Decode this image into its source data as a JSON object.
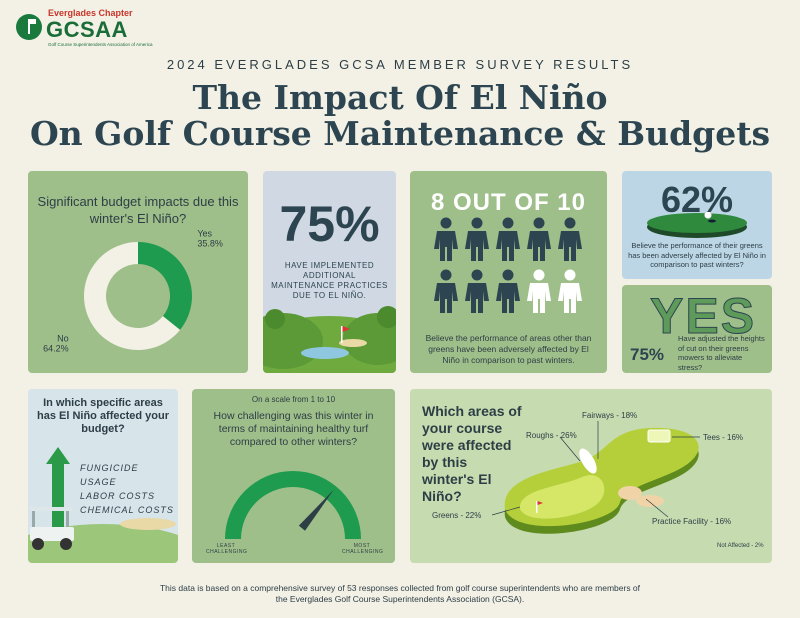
{
  "logo": {
    "chapter": "Everglades Chapter",
    "name": "GCSAA",
    "subtitle": "Golf Course Superintendents Association of America"
  },
  "header": {
    "survey_label": "2024 EVERGLADES GCSA MEMBER SURVEY RESULTS",
    "title_line1": "The Impact Of El Niño",
    "title_line2": "On Golf Course Maintenance & Budgets"
  },
  "budget_panel": {
    "question": "Significant budget impacts due this winter's El Niño?"
  },
  "maintenance_panel": {
    "stat": "75%",
    "text": "HAVE IMPLEMENTED ADDITIONAL MAINTENANCE PRACTICES DUE TO EL NIÑO."
  },
  "areas_panel": {
    "stat": "8 OUT OF 10",
    "text": "Believe the performance of areas other than greens have been adversely affected by El Niño in comparison to past winters."
  },
  "greens_panel": {
    "stat": "62%",
    "text": "Believe the performance of their greens has been adversely affected by El Niño in comparison to past winters?"
  },
  "mowers_panel": {
    "yes": "YES",
    "stat": "75%",
    "text": "Have adjusted the heights of cut on their greens mowers to alleviate stress?"
  },
  "specific_panel": {
    "question": "In which specific areas has El Niño affected your budget?",
    "items": [
      "FUNGICIDE USAGE",
      "LABOR COSTS",
      "CHEMICAL COSTS"
    ]
  },
  "gauge_panel": {
    "scale": "On a scale from 1 to 10",
    "question": "How challenging was this winter in terms of maintaining healthy turf compared to other winters?",
    "least": "LEAST CHALLENGING",
    "most": "MOST CHALLENGING"
  },
  "course_panel": {
    "question": "Which areas of your course were affected by this winter's El Niño?"
  },
  "footer": {
    "line1": "This data is based on a comprehensive survey of 53 responses collected from golf course superintendents who are members of",
    "line2": "the Everglades Golf Course Superintendents Association (GCSA)."
  },
  "colors": {
    "green": "#1e9b4e",
    "cream": "#f3f1e6",
    "navy": "#2d4550",
    "sage": "#9fbf8a"
  },
  "chart_data": [
    {
      "type": "pie",
      "title": "Significant budget impacts due this winter's El Niño?",
      "categories": [
        "Yes",
        "No"
      ],
      "values": [
        35.8,
        64.2
      ],
      "display": [
        "35.8%",
        "64.2%"
      ],
      "colors": [
        "#1e9b4e",
        "#f3f1e6"
      ],
      "donut": true
    },
    {
      "type": "bar",
      "title": "How challenging was this winter in terms of maintaining healthy turf compared to other winters?",
      "scale": [
        1,
        10
      ],
      "labels": [
        "LEAST CHALLENGING",
        "MOST CHALLENGING"
      ],
      "needle_fraction": 0.72
    },
    {
      "type": "pie",
      "title": "Which areas of your course were affected by this winter's El Niño?",
      "categories": [
        "Fairways",
        "Roughs",
        "Tees",
        "Greens",
        "Practice Facility",
        "Not Affected"
      ],
      "values": [
        18,
        26,
        16,
        22,
        16,
        2
      ],
      "display": [
        "Fairways - 18%",
        "Roughs - 26%",
        "Tees - 16%",
        "Greens - 22%",
        "Practice Facility - 16%",
        "Not Affected - 2%"
      ]
    }
  ]
}
